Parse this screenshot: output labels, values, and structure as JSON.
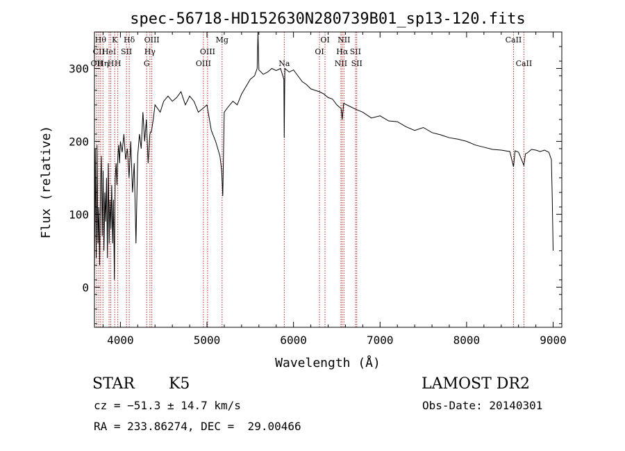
{
  "chart_data": {
    "type": "line",
    "title": "spec-56718-HD152630N280739B01_sp13-120.fits",
    "xlabel": "Wavelength (Å)",
    "ylabel": "Flux (relative)",
    "xlim": [
      3700,
      9100
    ],
    "ylim": [
      -55,
      350
    ],
    "xticks": [
      4000,
      5000,
      6000,
      7000,
      8000,
      9000
    ],
    "yticks": [
      0,
      100,
      200,
      300
    ],
    "grid": false,
    "line_color": "#000000",
    "marker_color": "#b22222",
    "series": [
      {
        "x": [
          3700,
          3710,
          3720,
          3730,
          3740,
          3750,
          3760,
          3770,
          3780,
          3790,
          3800,
          3810,
          3820,
          3830,
          3840,
          3850,
          3860,
          3870,
          3880,
          3890,
          3900,
          3910,
          3920,
          3930,
          3940,
          3950,
          3960,
          3970,
          3980,
          3990,
          4000,
          4020,
          4040,
          4060,
          4080,
          4100,
          4120,
          4140,
          4160,
          4180,
          4200,
          4220,
          4240,
          4260,
          4280,
          4300,
          4320,
          4340,
          4360,
          4380,
          4400,
          4430,
          4460,
          4500,
          4550,
          4600,
          4650,
          4700,
          4750,
          4800,
          4850,
          4900,
          4950,
          5000,
          5050,
          5100,
          5150,
          5170,
          5183,
          5200,
          5250,
          5300,
          5350,
          5400,
          5450,
          5500,
          5550,
          5580,
          5590,
          5600,
          5650,
          5700,
          5750,
          5800,
          5850,
          5889,
          5893,
          5900,
          5950,
          6000,
          6050,
          6100,
          6150,
          6200,
          6250,
          6300,
          6350,
          6400,
          6450,
          6500,
          6550,
          6563,
          6580,
          6650,
          6700,
          6800,
          6900,
          7000,
          7100,
          7200,
          7300,
          7400,
          7500,
          7600,
          7700,
          7800,
          7900,
          8000,
          8100,
          8200,
          8300,
          8400,
          8500,
          8542,
          8560,
          8600,
          8662,
          8680,
          8700,
          8750,
          8800,
          8850,
          8900,
          8950,
          8980,
          8990,
          9000
        ],
        "y": [
          10,
          190,
          40,
          195,
          60,
          110,
          30,
          140,
          180,
          70,
          160,
          50,
          130,
          90,
          150,
          40,
          170,
          60,
          120,
          80,
          140,
          60,
          120,
          10,
          150,
          170,
          140,
          180,
          195,
          170,
          200,
          185,
          210,
          175,
          190,
          150,
          200,
          130,
          170,
          60,
          180,
          210,
          190,
          240,
          200,
          230,
          170,
          210,
          215,
          230,
          250,
          245,
          240,
          255,
          262,
          255,
          260,
          268,
          250,
          262,
          255,
          240,
          245,
          250,
          215,
          200,
          180,
          160,
          125,
          240,
          248,
          255,
          250,
          265,
          275,
          285,
          290,
          300,
          350,
          298,
          292,
          295,
          300,
          297,
          300,
          285,
          205,
          300,
          295,
          298,
          290,
          282,
          278,
          272,
          270,
          268,
          265,
          260,
          258,
          250,
          245,
          230,
          252,
          248,
          245,
          240,
          232,
          235,
          228,
          227,
          220,
          215,
          219,
          212,
          209,
          205,
          203,
          200,
          195,
          192,
          189,
          188,
          186,
          165,
          187,
          185,
          167,
          183,
          184,
          189,
          188,
          186,
          188,
          185,
          175,
          120,
          50
        ]
      }
    ],
    "lines": [
      {
        "wavelength": 3727,
        "labels": [
          "OII"
        ],
        "row": 2
      },
      {
        "wavelength": 3750,
        "labels": [
          "CII"
        ],
        "row": 1
      },
      {
        "wavelength": 3771,
        "labels": [
          "Hθ"
        ],
        "row": 0
      },
      {
        "wavelength": 3798,
        "labels": [
          "Hη"
        ],
        "row": 2
      },
      {
        "wavelength": 3869,
        "labels": [
          "HeI"
        ],
        "row": 1
      },
      {
        "wavelength": 3889,
        "labels": [
          "H"
        ],
        "row": 2
      },
      {
        "wavelength": 3934,
        "labels": [
          "K"
        ],
        "row": 0
      },
      {
        "wavelength": 3970,
        "labels": [
          "H"
        ],
        "row": 2
      },
      {
        "wavelength": 4070,
        "labels": [
          "SII"
        ],
        "row": 1
      },
      {
        "wavelength": 4102,
        "labels": [
          "Hδ"
        ],
        "row": 0
      },
      {
        "wavelength": 4304,
        "labels": [
          "G"
        ],
        "row": 2
      },
      {
        "wavelength": 4341,
        "labels": [
          "Hγ"
        ],
        "row": 1
      },
      {
        "wavelength": 4363,
        "labels": [
          "OIII"
        ],
        "row": 0
      },
      {
        "wavelength": 4959,
        "labels": [
          "OIII"
        ],
        "row": 2
      },
      {
        "wavelength": 5007,
        "labels": [
          "OIII"
        ],
        "row": 1
      },
      {
        "wavelength": 5175,
        "labels": [
          "Mg"
        ],
        "row": 0
      },
      {
        "wavelength": 5893,
        "labels": [
          "Na"
        ],
        "row": 2
      },
      {
        "wavelength": 6300,
        "labels": [
          "OI"
        ],
        "row": 1
      },
      {
        "wavelength": 6364,
        "labels": [
          "OI"
        ],
        "row": 0
      },
      {
        "wavelength": 6548,
        "labels": [
          "NII"
        ],
        "row": 2
      },
      {
        "wavelength": 6563,
        "labels": [
          "Hα"
        ],
        "row": 1
      },
      {
        "wavelength": 6583,
        "labels": [
          "NII"
        ],
        "row": 0
      },
      {
        "wavelength": 6716,
        "labels": [
          "SII"
        ],
        "row": 1
      },
      {
        "wavelength": 6731,
        "labels": [
          "SII"
        ],
        "row": 2
      },
      {
        "wavelength": 8542,
        "labels": [
          "CaII"
        ],
        "row": 0
      },
      {
        "wavelength": 8662,
        "labels": [
          "CaII"
        ],
        "row": 2
      }
    ]
  },
  "footer": {
    "class_label": "STAR",
    "subclass_label": "K5",
    "survey": "LAMOST DR2",
    "cz": "cz = −51.3 ± 14.7 km/s",
    "obs_date": "Obs-Date: 20140301",
    "radec": "RA = 233.86274, DEC =  29.00466"
  }
}
